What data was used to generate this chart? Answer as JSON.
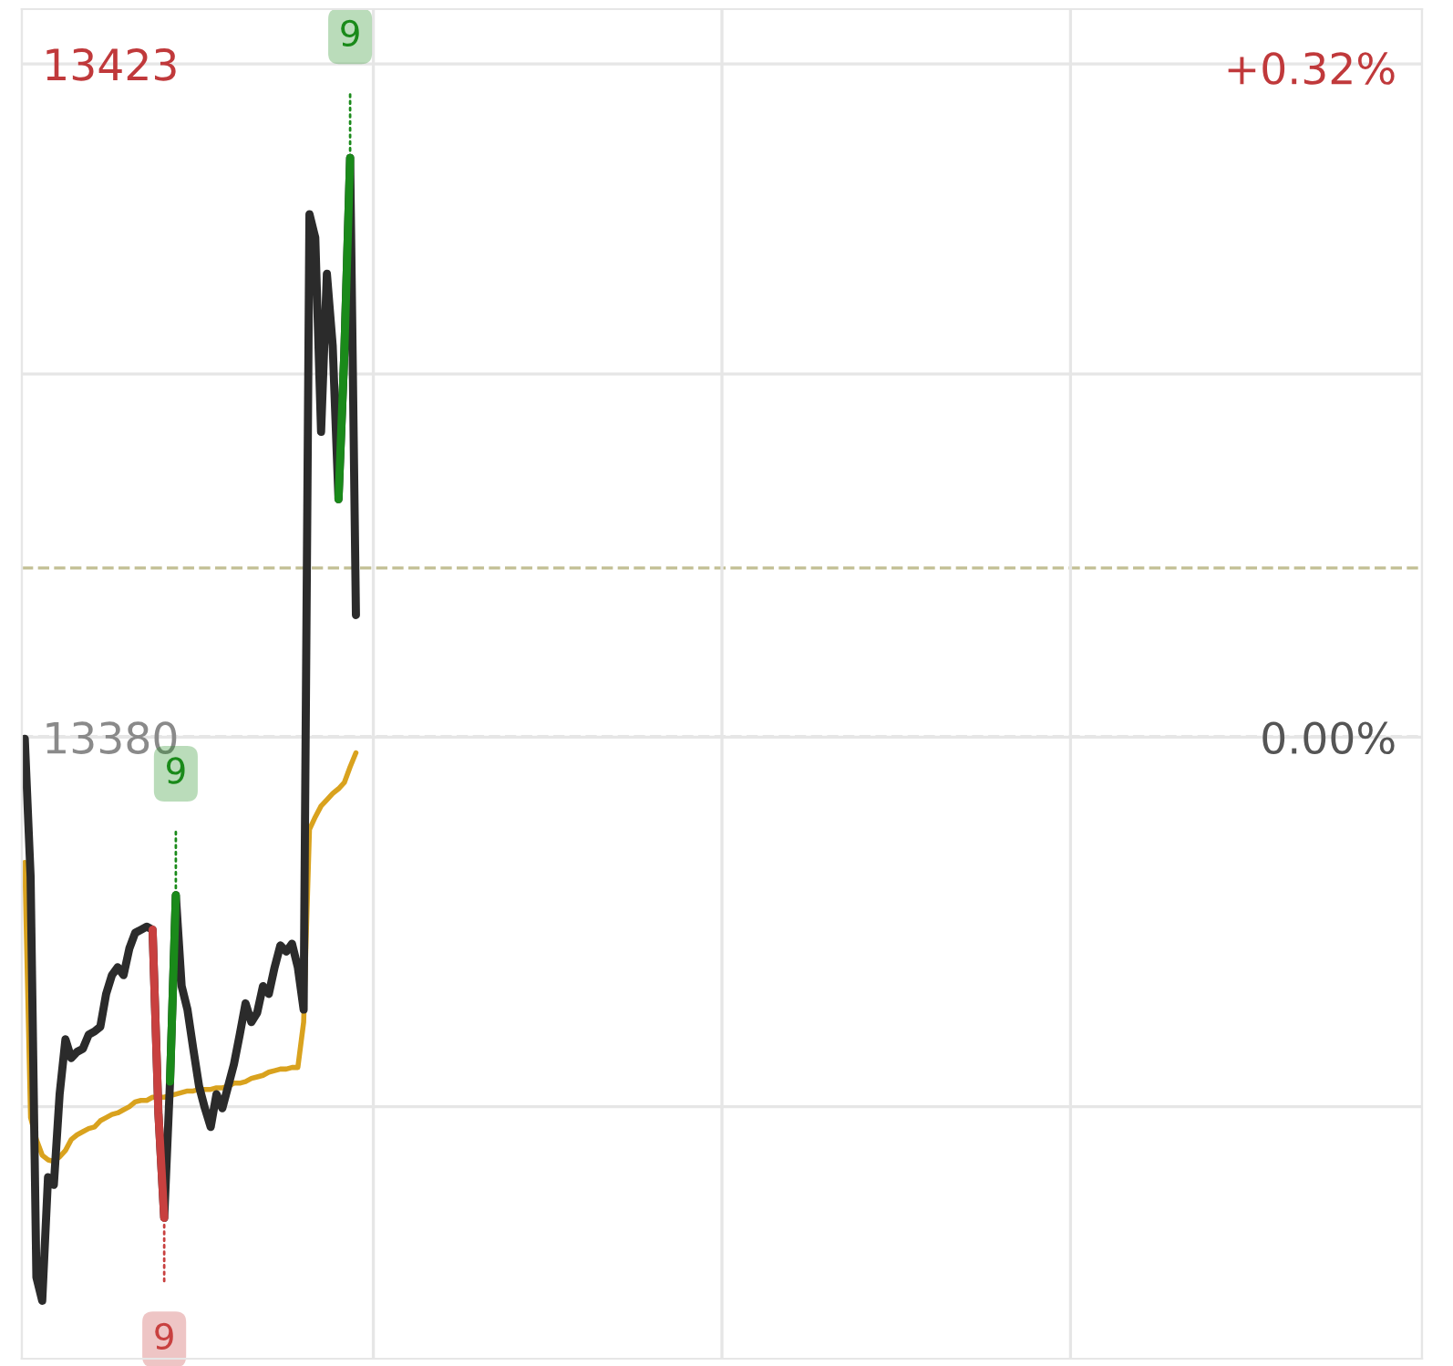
{
  "chart_data": {
    "type": "line",
    "categories": [
      null,
      null,
      null,
      null,
      null,
      null,
      null,
      null,
      null,
      null,
      null,
      null,
      null,
      null,
      null,
      null,
      null,
      null,
      null,
      null,
      null,
      null,
      null,
      null,
      null,
      null,
      null,
      null,
      null,
      null,
      null,
      null,
      null,
      null,
      null,
      null,
      null,
      null,
      null,
      null,
      null,
      null,
      null,
      null,
      null,
      null,
      null,
      null,
      null,
      null,
      null,
      null,
      null,
      null,
      null,
      null,
      null,
      null,
      null,
      null,
      null,
      null,
      null,
      null,
      null,
      null,
      null,
      null,
      null,
      null,
      null,
      null,
      null,
      null,
      null,
      null,
      null,
      null,
      null,
      null,
      null,
      null,
      null,
      null,
      null,
      null,
      null,
      null,
      null,
      null,
      null,
      null,
      null,
      null,
      null,
      null,
      null,
      null,
      null,
      null,
      null,
      null,
      null,
      null,
      null,
      null,
      null,
      null,
      null,
      null,
      null,
      null,
      null,
      null,
      null,
      null,
      null,
      null,
      null,
      null,
      null,
      null,
      null,
      null,
      null,
      null,
      null,
      null,
      null,
      null,
      null,
      null,
      null,
      null,
      null,
      null,
      null,
      null,
      null,
      null,
      null,
      null,
      null,
      null,
      null,
      null,
      null,
      null,
      null,
      null,
      null,
      null,
      null,
      null,
      null,
      null,
      null,
      null,
      null,
      null,
      null,
      null,
      null,
      null,
      null,
      null,
      null,
      null,
      null,
      null,
      null,
      null,
      null,
      null,
      null,
      null,
      null,
      null,
      null,
      null,
      null,
      null,
      null,
      null,
      null,
      null,
      null,
      null,
      null,
      null,
      null,
      null,
      null,
      null,
      null,
      null,
      null,
      null,
      null,
      null,
      null,
      null,
      null,
      null,
      null,
      null,
      null,
      null,
      null,
      null,
      null,
      null,
      null,
      null,
      null,
      null,
      null,
      null,
      null,
      null,
      null,
      null,
      null,
      null,
      null,
      null,
      null,
      null,
      null,
      null,
      null,
      null,
      null,
      null,
      null,
      null,
      null,
      null,
      null,
      null,
      null
    ],
    "series": [
      {
        "color": "#d9a21e",
        "values": [
          13372.0,
          13355.7,
          13354.3,
          13353.3,
          13353.0,
          13352.9,
          13353.2,
          13353.6,
          13354.3,
          13354.6,
          13354.8,
          13355.0,
          13355.1,
          13355.5,
          13355.7,
          13355.9,
          13356.0,
          13356.2,
          13356.4,
          13356.7,
          13356.8,
          13356.8,
          13357.0,
          13357.0,
          13357.0,
          13357.1,
          13357.2,
          13357.3,
          13357.4,
          13357.4,
          13357.5,
          13357.5,
          13357.5,
          13357.6,
          13357.6,
          13357.7,
          13357.9,
          13357.9,
          13358.0,
          13358.2,
          13358.3,
          13358.4,
          13358.6,
          13358.7,
          13358.8,
          13358.8,
          13358.9,
          13358.9,
          13361.8,
          13374.1,
          13374.9,
          13375.6,
          13376.0,
          13376.4,
          13376.7,
          13377.1,
          13378.1,
          13379.0,
          null,
          null,
          null,
          null,
          null,
          null,
          null,
          null,
          null,
          null,
          null,
          null,
          null,
          null,
          null,
          null,
          null,
          null,
          null,
          null,
          null,
          null,
          null,
          null,
          null,
          null,
          null,
          null,
          null,
          null,
          null,
          null,
          null,
          null,
          null,
          null,
          null,
          null,
          null,
          null,
          null,
          null,
          null,
          null,
          null,
          null,
          null,
          null,
          null,
          null,
          null,
          null,
          null,
          null,
          null,
          null,
          null,
          null,
          null,
          null,
          null,
          null,
          null,
          null,
          null,
          null,
          null,
          null,
          null,
          null,
          null,
          null,
          null,
          null,
          null,
          null,
          null,
          null,
          null,
          null,
          null,
          null,
          null,
          null,
          null,
          null,
          null,
          null,
          null,
          null,
          null,
          null,
          null,
          null,
          null,
          null,
          null,
          null,
          null,
          null,
          null,
          null,
          null,
          null,
          null,
          null,
          null,
          null,
          null,
          null,
          null,
          null,
          null,
          null,
          null,
          null,
          null,
          null,
          null,
          null,
          null,
          null,
          null,
          null,
          null,
          null,
          null,
          null,
          null,
          null,
          null,
          null,
          null,
          null,
          null,
          null,
          null,
          null,
          null,
          null,
          null,
          null,
          null,
          null,
          null,
          null,
          null,
          null,
          null,
          null,
          null,
          null,
          null,
          null,
          null,
          null,
          null,
          null,
          null,
          null,
          null,
          null,
          null,
          null,
          null,
          null,
          null,
          null,
          null,
          null,
          null,
          null,
          null,
          null,
          null,
          null,
          null,
          null,
          null,
          null,
          null,
          null,
          null
        ]
      },
      {
        "color": "#2b2b2b",
        "values": [
          13379.9,
          13371.1,
          13345.5,
          13344.0,
          13351.9,
          13351.4,
          13357.2,
          13360.7,
          13359.5,
          13359.9,
          13360.1,
          13361.0,
          13361.2,
          13361.5,
          13363.6,
          13364.8,
          13365.3,
          13364.8,
          13366.5,
          13367.5,
          13367.7,
          13367.9,
          13367.7,
          13356.0,
          13349.3,
          13358.0,
          13369.9,
          13364.1,
          13362.6,
          13360.1,
          13357.7,
          13356.3,
          13355.1,
          13357.2,
          13356.3,
          13357.7,
          13359.1,
          13361.0,
          13363.0,
          13361.8,
          13362.4,
          13364.1,
          13363.6,
          13365.3,
          13366.7,
          13366.3,
          13366.8,
          13365.3,
          13362.6,
          13413.4,
          13411.9,
          13399.5,
          13409.6,
          13405.0,
          13395.2,
          13404.5,
          13417.0,
          13387.8,
          null,
          null,
          null,
          null,
          null,
          null,
          null,
          null,
          null,
          null,
          null,
          null,
          null,
          null,
          null,
          null,
          null,
          null,
          null,
          null,
          null,
          null,
          null,
          null,
          null,
          null,
          null,
          null,
          null,
          null,
          null,
          null,
          null,
          null,
          null,
          null,
          null,
          null,
          null,
          null,
          null,
          null,
          null,
          null,
          null,
          null,
          null,
          null,
          null,
          null,
          null,
          null,
          null,
          null,
          null,
          null,
          null,
          null,
          null,
          null,
          null,
          null,
          null,
          null,
          null,
          null,
          null,
          null,
          null,
          null,
          null,
          null,
          null,
          null,
          null,
          null,
          null,
          null,
          null,
          null,
          null,
          null,
          null,
          null,
          null,
          null,
          null,
          null,
          null,
          null,
          null,
          null,
          null,
          null,
          null,
          null,
          null,
          null,
          null,
          null,
          null,
          null,
          null,
          null,
          null,
          null,
          null,
          null,
          null,
          null,
          null,
          null,
          null,
          null,
          null,
          null,
          null,
          null,
          null,
          null,
          null,
          null,
          null,
          null,
          null,
          null,
          null,
          null,
          null,
          null,
          null,
          null,
          null,
          null,
          null,
          null,
          null,
          null,
          null,
          null,
          null,
          null,
          null,
          null,
          null,
          null,
          null,
          null,
          null,
          null,
          null,
          null,
          null,
          null,
          null,
          null,
          null,
          null,
          null,
          null,
          null,
          null,
          null,
          null,
          null,
          null,
          null,
          null,
          null,
          null,
          null,
          null,
          null,
          null,
          null,
          null,
          null,
          null,
          null,
          null,
          null,
          null,
          null
        ]
      },
      {
        "color": "#c8403f",
        "values": [
          null,
          null,
          null,
          null,
          null,
          null,
          null,
          null,
          null,
          null,
          null,
          null,
          null,
          null,
          null,
          null,
          null,
          null,
          null,
          null,
          null,
          null,
          13367.7,
          13356.0,
          13349.3,
          null,
          null,
          null,
          null,
          null,
          null,
          null,
          null,
          null,
          null,
          null,
          null,
          null,
          null,
          null,
          null,
          null,
          null,
          null,
          null,
          null,
          null,
          null,
          null,
          null,
          null,
          null,
          null,
          null,
          null,
          null,
          null,
          null,
          null,
          null,
          null,
          null,
          null,
          null,
          null,
          null,
          null,
          null,
          null,
          null,
          null,
          null,
          null,
          null,
          null,
          null,
          null,
          null,
          null,
          null,
          null,
          null,
          null,
          null,
          null,
          null,
          null,
          null,
          null,
          null,
          null,
          null,
          null,
          null,
          null,
          null,
          null,
          null,
          null,
          null,
          null,
          null,
          null,
          null,
          null,
          null,
          null,
          null,
          null,
          null,
          null,
          null,
          null,
          null,
          null,
          null,
          null,
          null,
          null,
          null,
          null,
          null,
          null,
          null,
          null,
          null,
          null,
          null,
          null,
          null,
          null,
          null,
          null,
          null,
          null,
          null,
          null,
          null,
          null,
          null,
          null,
          null,
          null,
          null,
          null,
          null,
          null,
          null,
          null,
          null,
          null,
          null,
          null,
          null,
          null,
          null,
          null,
          null,
          null,
          null,
          null,
          null,
          null,
          null,
          null,
          null,
          null,
          null,
          null,
          null,
          null,
          null,
          null,
          null,
          null,
          null,
          null,
          null,
          null,
          null,
          null,
          null,
          null,
          null,
          null,
          null,
          null,
          null,
          null,
          null,
          null,
          null,
          null,
          null,
          null,
          null,
          null,
          null,
          null,
          null,
          null,
          null,
          null,
          null,
          null,
          null,
          null,
          null,
          null,
          null,
          null,
          null,
          null,
          null,
          null,
          null,
          null,
          null,
          null,
          null,
          null,
          null,
          null,
          null,
          null,
          null,
          null,
          null,
          null,
          null,
          null,
          null,
          null,
          null,
          null,
          null,
          null,
          null,
          null,
          null,
          null
        ]
      },
      {
        "color": "#1a8a1a",
        "values": [
          null,
          null,
          null,
          null,
          null,
          null,
          null,
          null,
          null,
          null,
          null,
          null,
          null,
          null,
          null,
          null,
          null,
          null,
          null,
          null,
          null,
          null,
          null,
          null,
          null,
          13358.0,
          13369.9,
          null,
          null,
          null,
          null,
          null,
          null,
          null,
          null,
          null,
          null,
          null,
          null,
          null,
          null,
          null,
          null,
          null,
          null,
          null,
          null,
          null,
          null,
          null,
          null,
          null,
          null,
          null,
          13395.2,
          13404.5,
          13417.0,
          null,
          null,
          null,
          null,
          null,
          null,
          null,
          null,
          null,
          null,
          null,
          null,
          null,
          null,
          null,
          null,
          null,
          null,
          null,
          null,
          null,
          null,
          null,
          null,
          null,
          null,
          null,
          null,
          null,
          null,
          null,
          null,
          null,
          null,
          null,
          null,
          null,
          null,
          null,
          null,
          null,
          null,
          null,
          null,
          null,
          null,
          null,
          null,
          null,
          null,
          null,
          null,
          null,
          null,
          null,
          null,
          null,
          null,
          null,
          null,
          null,
          null,
          null,
          null,
          null,
          null,
          null,
          null,
          null,
          null,
          null,
          null,
          null,
          null,
          null,
          null,
          null,
          null,
          null,
          null,
          null,
          null,
          null,
          null,
          null,
          null,
          null,
          null,
          null,
          null,
          null,
          null,
          null,
          null,
          null,
          null,
          null,
          null,
          null,
          null,
          null,
          null,
          null,
          null,
          null,
          null,
          null,
          null,
          null,
          null,
          null,
          null,
          null,
          null,
          null,
          null,
          null,
          null,
          null,
          null,
          null,
          null,
          null,
          null,
          null,
          null,
          null,
          null,
          null,
          null,
          null,
          null,
          null,
          null,
          null,
          null,
          null,
          null,
          null,
          null,
          null,
          null,
          null,
          null,
          null,
          null,
          null,
          null,
          null,
          null,
          null,
          null,
          null,
          null,
          null,
          null,
          null,
          null,
          null,
          null,
          null,
          null,
          null,
          null,
          null,
          null,
          null,
          null,
          null,
          null,
          null,
          null,
          null,
          null,
          null,
          null,
          null,
          null,
          null,
          null,
          null,
          null,
          null,
          null
        ]
      }
    ],
    "ylim": [
      13340.3,
      13426.5
    ],
    "yticks": [
      {
        "value": 13423,
        "label": "13423"
      },
      {
        "value": 13403.2,
        "label": null
      },
      {
        "value": 13380,
        "label": "13380"
      },
      {
        "value": 13356.4,
        "label": null
      }
    ],
    "y2lim": [
      -0.297,
      0.348
    ],
    "y2ticks": [
      {
        "value": 0.32,
        "label": "+0.32%"
      },
      {
        "value": 0,
        "label": "0.00%"
      }
    ],
    "ref_lines": [
      {
        "axis": "y",
        "value": 13390.8,
        "color": "#c2bf94",
        "line_style": "dashed"
      },
      {
        "axis": "y",
        "value": 13380,
        "color": "#9a9a9a",
        "line_style": "dashed"
      }
    ],
    "annotations": [
      "9",
      "9",
      "9"
    ],
    "grid": true,
    "line_style": "solid",
    "marker": "none"
  }
}
